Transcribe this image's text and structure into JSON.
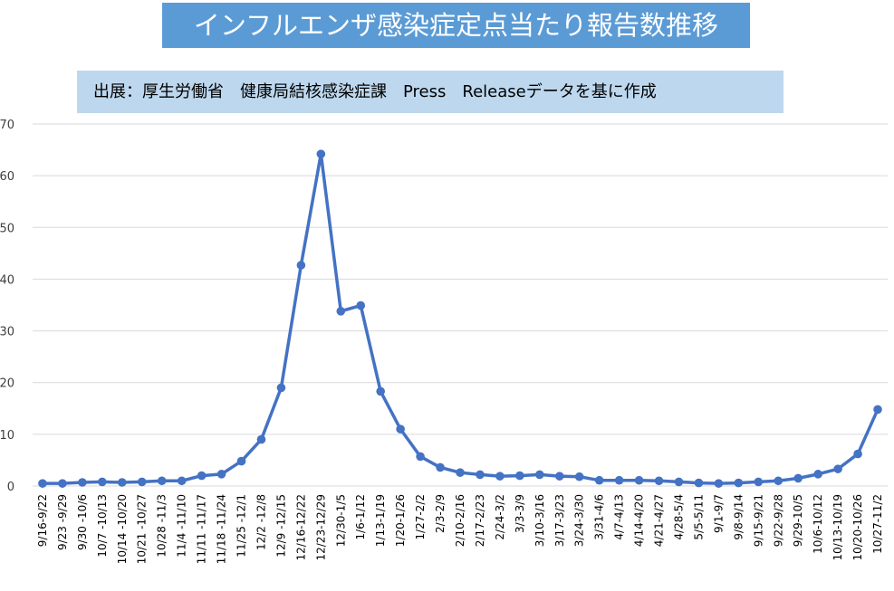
{
  "header": {
    "title": "インフルエンザ感染症定点当たり報告数推移",
    "source": "出展：厚生労働省　健康局結核感染症課　Press　Releaseデータを基に作成"
  },
  "colors": {
    "line": "#4472c4",
    "title_bg": "#5b9bd5",
    "source_bg": "#bdd7ee",
    "grid": "#d9d9d9"
  },
  "chart_data": {
    "type": "line",
    "title": "インフルエンザ感染症定点当たり報告数推移",
    "xlabel": "",
    "ylabel": "",
    "ylim": [
      0,
      70
    ],
    "yticks": [
      0,
      10,
      20,
      30,
      40,
      50,
      60,
      70
    ],
    "grid": true,
    "legend": "none",
    "categories": [
      "9/16-9/22",
      "9/23 -9/29",
      "9/30 -10/6",
      "10/7 -10/13",
      "10/14 -10/20",
      "10/21 -10/27",
      "10/28 -11/3",
      "11/4 -11/10",
      "11/11 -11/17",
      "11/18 -11/24",
      "11/25 -12/1",
      "12/2 -12/8",
      "12/9 -12/15",
      "12/16-12/22",
      "12/23-12/29",
      "12/30-1/5",
      "1/6-1/12",
      "1/13-1/19",
      "1/20-1/26",
      "1/27-2/2",
      "2/3-2/9",
      "2/10-2/16",
      "2/17-2/23",
      "2/24-3/2",
      "3/3-3/9",
      "3/10-3/16",
      "3/17-3/23",
      "3/24-3/30",
      "3/31-4/6",
      "4/7-4/13",
      "4/14-4/20",
      "4/21-4/27",
      "4/28-5/4",
      "5/5-5/11",
      "9/1-9/7",
      "9/8-9/14",
      "9/15-9/21",
      "9/22-9/28",
      "9/29-10/5",
      "10/6-10/12",
      "10/13-10/19",
      "10/20-10/26",
      "10/27-11/2"
    ],
    "series": [
      {
        "values": [
          0.5,
          0.5,
          0.7,
          0.8,
          0.7,
          0.8,
          1.0,
          1.0,
          2.0,
          2.3,
          4.8,
          9.0,
          19.0,
          42.7,
          64.2,
          33.8,
          34.9,
          18.3,
          11.0,
          5.7,
          3.6,
          2.6,
          2.2,
          1.9,
          2.0,
          2.2,
          1.9,
          1.8,
          1.1,
          1.1,
          1.1,
          1.0,
          0.8,
          0.6,
          0.5,
          0.6,
          0.8,
          1.0,
          1.5,
          2.3,
          3.3,
          6.2,
          14.8
        ]
      }
    ]
  }
}
